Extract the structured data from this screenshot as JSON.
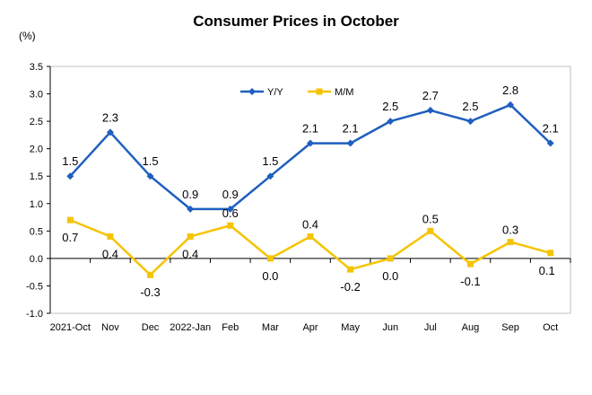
{
  "chart_data": {
    "type": "line",
    "title": "Consumer Prices in October",
    "ylabel": "(%)",
    "xlabel": "",
    "categories": [
      "2021-Oct",
      "Nov",
      "Dec",
      "2022-Jan",
      "Feb",
      "Mar",
      "Apr",
      "May",
      "Jun",
      "Jul",
      "Aug",
      "Sep",
      "Oct"
    ],
    "ylim": [
      -1.0,
      3.5
    ],
    "yticks": [
      "3.5",
      "3.0",
      "2.5",
      "2.0",
      "1.5",
      "1.0",
      "0.5",
      "0.0",
      "-0.5",
      "-1.0"
    ],
    "ytick_values": [
      3.5,
      3.0,
      2.5,
      2.0,
      1.5,
      1.0,
      0.5,
      0.0,
      -0.5,
      -1.0
    ],
    "grid": false,
    "legend_position": "top-right",
    "series": [
      {
        "name": "Y/Y",
        "color": "#1f5fbf",
        "marker": "diamond",
        "values": [
          1.5,
          2.3,
          1.5,
          0.9,
          0.9,
          1.5,
          2.1,
          2.1,
          2.5,
          2.7,
          2.5,
          2.8,
          2.1
        ],
        "labels": [
          "1.5",
          "2.3",
          "1.5",
          "0.9",
          "0.9",
          "1.5",
          "2.1",
          "2.1",
          "2.5",
          "2.7",
          "2.5",
          "2.8",
          "2.1"
        ]
      },
      {
        "name": "M/M",
        "color": "#f5c400",
        "marker": "square",
        "values": [
          0.7,
          0.4,
          -0.3,
          0.4,
          0.6,
          0.0,
          0.4,
          -0.2,
          0.0,
          0.5,
          -0.1,
          0.3,
          0.1
        ],
        "labels": [
          "0.7",
          "0.4",
          "-0.3",
          "0.4",
          "0.6",
          "0.0",
          "0.4",
          "-0.2",
          "0.0",
          "0.5",
          "-0.1",
          "0.3",
          "0.1"
        ]
      }
    ]
  }
}
